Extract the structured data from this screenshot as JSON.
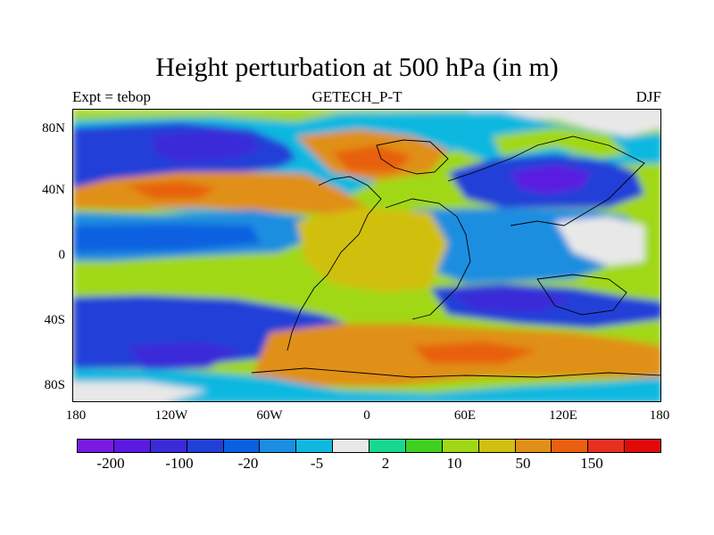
{
  "chart_data": {
    "type": "heatmap",
    "title": "Height perturbation at 500 hPa (in m)",
    "subtitle_left": "Expt = tebop",
    "subtitle_center": "GETECH_P-T",
    "subtitle_right": "DJF",
    "x_ticks": [
      "180",
      "120W",
      "60W",
      "0",
      "60E",
      "120E",
      "180"
    ],
    "y_ticks": [
      "80N",
      "40N",
      "0",
      "40S",
      "80S"
    ],
    "xlim": [
      -180,
      180
    ],
    "ylim": [
      -90,
      90
    ],
    "colorbar": {
      "labels": [
        "-200",
        "-100",
        "-20",
        "-5",
        "2",
        "10",
        "50",
        "150"
      ],
      "colors": [
        "#7a1ae0",
        "#5a1ae0",
        "#3a2ad8",
        "#2040d8",
        "#0a60e0",
        "#1a8ee0",
        "#10b8e0",
        "#e8e8e8",
        "#18d890",
        "#40d020",
        "#a0d818",
        "#d0c010",
        "#e09018",
        "#e86010",
        "#e83020",
        "#e00a0a"
      ]
    },
    "description": "Global map, cylindrical projection, with filled contours of 500 hPa height perturbation"
  }
}
